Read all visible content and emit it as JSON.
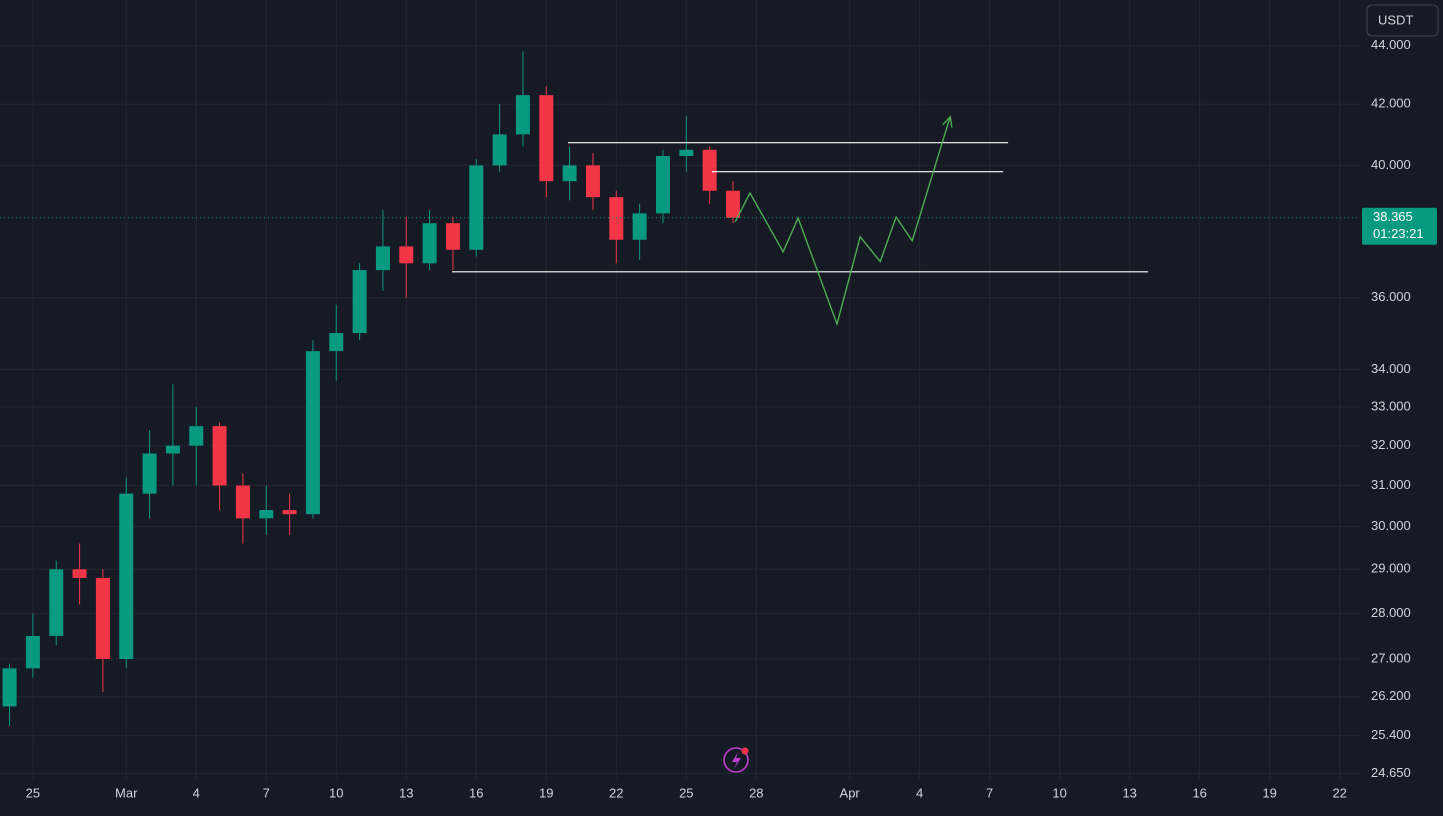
{
  "chart_data": {
    "type": "candlestick",
    "currency": "USDT",
    "log_scale": true,
    "grid": true,
    "up_color": "#089981",
    "down_color": "#f23645",
    "x": [
      -1,
      0,
      1,
      2,
      3,
      4,
      5,
      6,
      7,
      8,
      9,
      10,
      11,
      12,
      13,
      14,
      15,
      16,
      17,
      18,
      19,
      20,
      21,
      22,
      23,
      24,
      25,
      26,
      27,
      28,
      29,
      30
    ],
    "open": [
      26.0,
      26.8,
      27.5,
      29.0,
      28.8,
      27.0,
      30.8,
      31.8,
      32.0,
      32.5,
      31.0,
      30.2,
      30.4,
      30.3,
      34.5,
      35.0,
      36.8,
      37.5,
      37.0,
      38.2,
      37.4,
      40.0,
      41.0,
      42.3,
      39.5,
      40.0,
      39.0,
      37.7,
      38.5,
      40.3,
      40.5,
      39.2
    ],
    "high": [
      26.9,
      28.0,
      29.2,
      29.6,
      29.0,
      31.2,
      32.4,
      33.6,
      33.0,
      32.6,
      31.3,
      31.0,
      30.8,
      34.8,
      35.8,
      37.0,
      38.6,
      38.4,
      38.6,
      38.4,
      40.2,
      42.0,
      43.8,
      42.6,
      40.6,
      40.4,
      39.2,
      38.8,
      40.5,
      41.6,
      40.6,
      39.5
    ],
    "low": [
      25.6,
      26.6,
      27.3,
      28.2,
      26.3,
      26.8,
      30.2,
      31.0,
      31.0,
      30.4,
      29.6,
      29.8,
      29.8,
      30.2,
      33.7,
      34.8,
      36.2,
      36.0,
      36.8,
      36.8,
      37.2,
      39.8,
      40.6,
      39.0,
      38.9,
      38.6,
      37.0,
      37.1,
      38.2,
      39.8,
      38.8,
      38.2
    ],
    "close": [
      26.8,
      27.5,
      29.0,
      28.8,
      27.0,
      30.8,
      31.8,
      32.0,
      32.5,
      31.0,
      30.2,
      30.4,
      30.3,
      34.5,
      35.0,
      36.8,
      37.5,
      37.0,
      38.2,
      37.4,
      40.0,
      41.0,
      42.3,
      39.5,
      40.0,
      39.0,
      37.7,
      38.5,
      40.3,
      40.5,
      39.2,
      38.365
    ],
    "ylim": [
      24.52,
      45.63
    ],
    "yticks": [
      {
        "value": 44,
        "label": "44.000"
      },
      {
        "value": 42,
        "label": "42.000"
      },
      {
        "value": 40,
        "label": "40.000"
      },
      {
        "value": 36,
        "label": "36.000"
      },
      {
        "value": 34,
        "label": "34.000"
      },
      {
        "value": 33,
        "label": "33.000"
      },
      {
        "value": 32,
        "label": "32.000"
      },
      {
        "value": 31,
        "label": "31.000"
      },
      {
        "value": 30,
        "label": "30.000"
      },
      {
        "value": 29,
        "label": "29.000"
      },
      {
        "value": 28,
        "label": "28.000"
      },
      {
        "value": 27,
        "label": "27.000"
      },
      {
        "value": 26.2,
        "label": "26.200"
      },
      {
        "value": 25.4,
        "label": "25.400"
      },
      {
        "value": 24.65,
        "label": "24.650"
      }
    ],
    "xlim": [
      -1.41,
      56.87
    ],
    "xticks": [
      {
        "value": 0,
        "label": "25"
      },
      {
        "value": 4,
        "label": "Mar"
      },
      {
        "value": 7,
        "label": "4"
      },
      {
        "value": 10,
        "label": "7"
      },
      {
        "value": 13,
        "label": "10"
      },
      {
        "value": 16,
        "label": "13"
      },
      {
        "value": 19,
        "label": "16"
      },
      {
        "value": 22,
        "label": "19"
      },
      {
        "value": 25,
        "label": "22"
      },
      {
        "value": 28,
        "label": "25"
      },
      {
        "value": 31,
        "label": "28"
      },
      {
        "value": 35,
        "label": "Apr"
      },
      {
        "value": 38,
        "label": "4"
      },
      {
        "value": 41,
        "label": "7"
      },
      {
        "value": 44,
        "label": "10"
      },
      {
        "value": 47,
        "label": "13"
      },
      {
        "value": 50,
        "label": "16"
      },
      {
        "value": 53,
        "label": "19"
      },
      {
        "value": 56,
        "label": "22"
      }
    ],
    "last_price": 38.365,
    "countdown": "01:23:21",
    "last_price_color": "#089981",
    "levels": [
      {
        "price": 40.73,
        "x": [
          22.93,
          41.79
        ]
      },
      {
        "price": 39.8,
        "x": [
          29.1,
          41.58
        ]
      },
      {
        "price": 36.75,
        "x": [
          17.96,
          47.79
        ]
      }
    ],
    "projection": {
      "color": "#4caf50",
      "x": [
        30.09,
        30.73,
        32.15,
        32.79,
        34.46,
        35.45,
        36.31,
        36.99,
        37.68,
        39.31
      ],
      "y": [
        38.24,
        39.13,
        37.34,
        38.36,
        35.25,
        37.79,
        37.05,
        38.39,
        37.67,
        41.58
      ]
    }
  }
}
